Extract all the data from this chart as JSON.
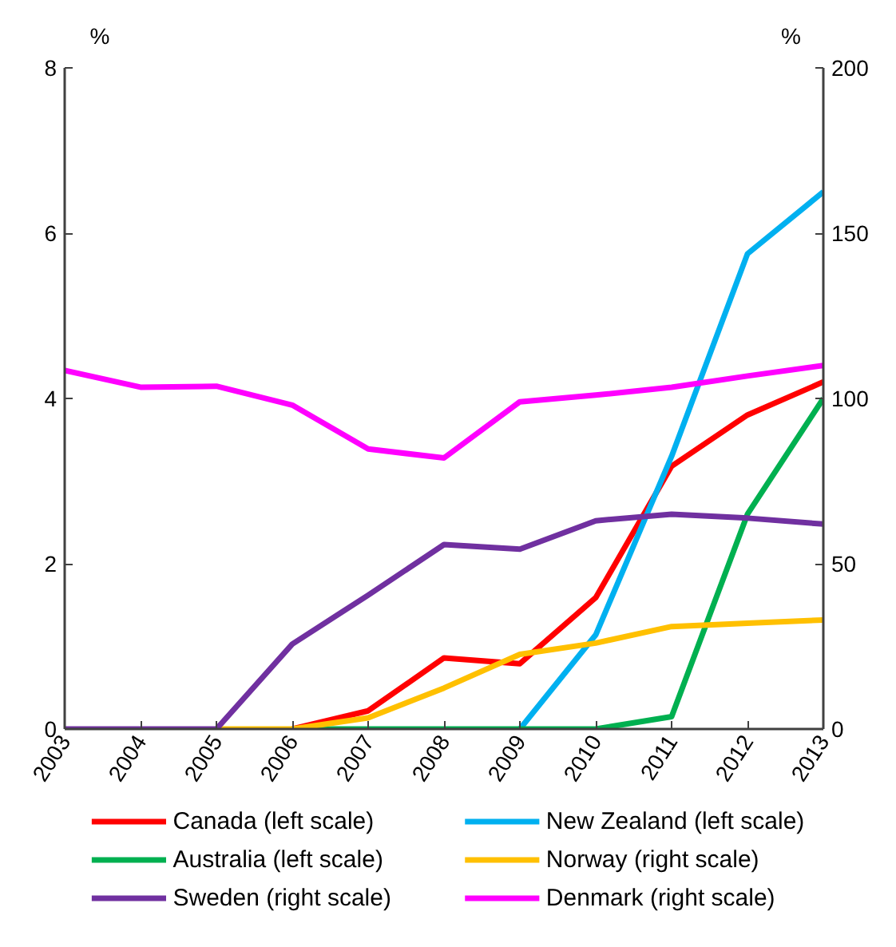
{
  "chart_data": {
    "type": "line",
    "ylabel": "%",
    "y2label": "%",
    "x": [
      2003,
      2004,
      2005,
      2006,
      2007,
      2008,
      2009,
      2010,
      2011,
      2012,
      2013
    ],
    "xlim": [
      2003,
      2013
    ],
    "xticks": [
      2003,
      2004,
      2005,
      2006,
      2007,
      2008,
      2009,
      2010,
      2011,
      2012,
      2013
    ],
    "ylim": [
      0,
      8
    ],
    "yticks": [
      0,
      2,
      4,
      6,
      8
    ],
    "y2lim": [
      0,
      200
    ],
    "y2ticks": [
      0,
      50,
      100,
      150,
      200
    ],
    "grid": false,
    "legend": "bottom",
    "line_style": "solid",
    "marker": "none",
    "series": [
      {
        "name": "Canada (left scale)",
        "color": "#ff0000",
        "values": [
          null,
          null,
          null,
          0,
          0.22,
          0.86,
          0.79,
          1.59,
          3.18,
          3.8,
          4.2
        ]
      },
      {
        "name": "New Zealand (left scale)",
        "color": "#00b0f0",
        "values": [
          null,
          null,
          null,
          null,
          null,
          null,
          0,
          1.14,
          3.3,
          5.75,
          6.5
        ]
      },
      {
        "name": "Australia (left scale)",
        "color": "#00b050",
        "values": [
          null,
          null,
          null,
          0,
          0,
          0,
          0,
          0,
          0.15,
          2.6,
          4.0
        ]
      },
      {
        "name": "Norway (right scale)",
        "color": "#ffc000",
        "axis": "y2",
        "values": [
          null,
          null,
          0,
          0,
          3.4,
          12.4,
          22.6,
          26,
          31,
          32,
          33
        ]
      },
      {
        "name": "Sweden (right scale)",
        "color": "#7030a0",
        "axis": "y2",
        "values": [
          0,
          0,
          0,
          25.7,
          40.5,
          55.8,
          54.4,
          63,
          65,
          63.8,
          62
        ]
      },
      {
        "name": "Denmark (right scale)",
        "color": "#ff00ff",
        "axis": "y2",
        "values": [
          108.5,
          103.4,
          103.7,
          98,
          84.7,
          82,
          99,
          101,
          103.4,
          106.8,
          110
        ]
      }
    ]
  }
}
